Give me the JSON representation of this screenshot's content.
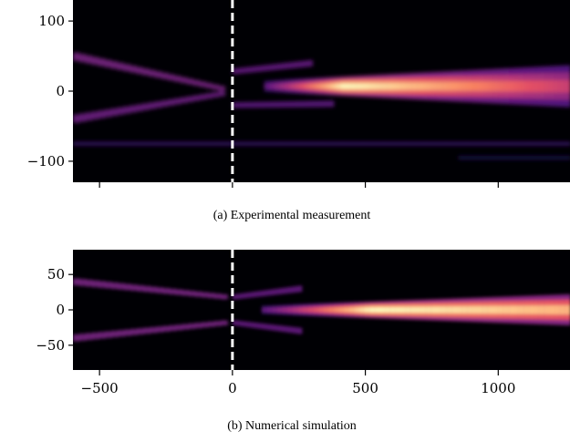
{
  "chart_data": [
    {
      "type": "heatmap",
      "caption": "(a) Experimental measurement",
      "colormap": "magma",
      "x_ticks": [
        -500,
        0,
        500,
        1000
      ],
      "x_tick_labels_shown": false,
      "y_ticks": [
        100,
        0,
        -100
      ],
      "y_tick_labels": [
        "100",
        "0",
        "−100"
      ],
      "xlim": [
        -600,
        1270
      ],
      "ylim": [
        -130,
        130
      ],
      "marker_line_x": 0,
      "beams": [
        {
          "x0": -600,
          "x1": -30,
          "y0": 50,
          "y1": 3,
          "w0": 12,
          "w1": 7,
          "intensity": 0.35
        },
        {
          "x0": -600,
          "x1": -30,
          "y0": -40,
          "y1": -3,
          "w0": 12,
          "w1": 7,
          "intensity": 0.32
        },
        {
          "x0": 0,
          "x1": 300,
          "y0": 28,
          "y1": 40,
          "w0": 8,
          "w1": 9,
          "intensity": 0.3
        },
        {
          "x0": 0,
          "x1": 380,
          "y0": -20,
          "y1": -18,
          "w0": 8,
          "w1": 9,
          "intensity": 0.28
        },
        {
          "x0": -600,
          "x1": 1270,
          "y0": -75,
          "y1": -75,
          "w0": 6,
          "w1": 6,
          "intensity": 0.18
        },
        {
          "x0": 850,
          "x1": 1270,
          "y0": -95,
          "y1": -95,
          "w0": 6,
          "w1": 6,
          "intensity": 0.12
        }
      ],
      "main_beam": {
        "x_start": 120,
        "x_peak": 420,
        "y": 7,
        "width_start": 8,
        "width_end": 30,
        "peak_intensity": 1.0,
        "end_intensity": 0.55
      }
    },
    {
      "type": "heatmap",
      "caption": "(b) Numerical simulation",
      "colormap": "magma",
      "x_ticks": [
        -500,
        0,
        500,
        1000
      ],
      "x_tick_labels": [
        "−500",
        "0",
        "500",
        "1000"
      ],
      "y_ticks": [
        50,
        0,
        -50
      ],
      "y_tick_labels": [
        "50",
        "0",
        "−50"
      ],
      "xlim": [
        -600,
        1270
      ],
      "ylim": [
        -85,
        85
      ],
      "marker_line_x": 0,
      "beams": [
        {
          "x0": -600,
          "x1": -20,
          "y0": 40,
          "y1": 18,
          "w0": 10,
          "w1": 7,
          "intensity": 0.35
        },
        {
          "x0": -600,
          "x1": -20,
          "y0": -40,
          "y1": -18,
          "w0": 10,
          "w1": 7,
          "intensity": 0.35
        },
        {
          "x0": 0,
          "x1": 260,
          "y0": 18,
          "y1": 30,
          "w0": 7,
          "w1": 9,
          "intensity": 0.3
        },
        {
          "x0": 0,
          "x1": 260,
          "y0": -18,
          "y1": -30,
          "w0": 7,
          "w1": 9,
          "intensity": 0.3
        }
      ],
      "main_beam": {
        "x_start": 110,
        "x_peak": 520,
        "y": 0,
        "width_start": 6,
        "width_end": 22,
        "peak_intensity": 1.0,
        "end_intensity": 0.85
      }
    }
  ]
}
